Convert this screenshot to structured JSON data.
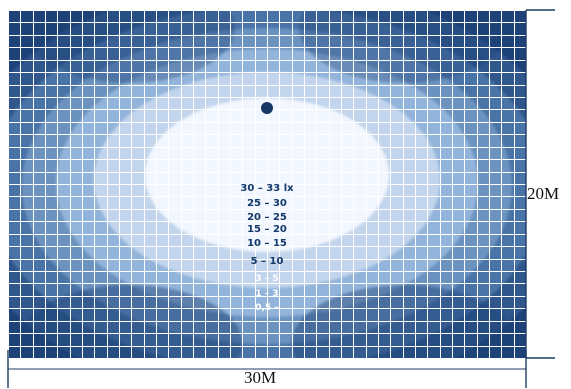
{
  "diagram": {
    "grid": {
      "columns": 42,
      "rows": 28
    },
    "colors": {
      "background": "#ffffff",
      "outer": "#1d4278",
      "ring_1": "#325a8f",
      "ring_2": "#4d77aa",
      "ring_3": "#7097c3",
      "ring_4": "#98b8dd",
      "ring_5": "#c8d9ef",
      "center": "#f4f8ff",
      "grid_line": "#ffffff",
      "dimension_line": "#1f3d63",
      "source_dot": "#163763"
    },
    "illuminance_scale": [
      "30 – 33 lx",
      "25 – 30",
      "20 – 25",
      "15 – 20",
      "10 – 15",
      "5 – 10",
      "3 – 5",
      "1 – 3",
      "0,5 –"
    ],
    "dimensions": {
      "width": "30M",
      "height": "20M"
    }
  }
}
